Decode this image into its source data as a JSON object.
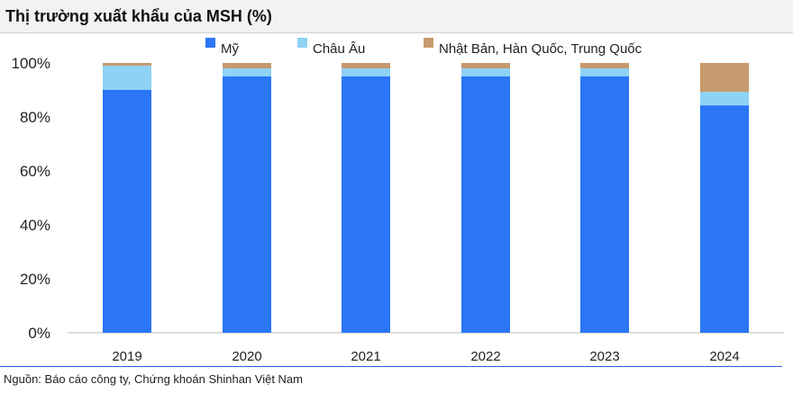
{
  "chart_data": {
    "type": "bar",
    "stacked": true,
    "title": "Thị trường xuất khẩu của MSH (%)",
    "categories": [
      "2019",
      "2020",
      "2021",
      "2022",
      "2023",
      "2024"
    ],
    "series": [
      {
        "name": "Mỹ",
        "color": "#2a76f4",
        "values": [
          90,
          95,
          95,
          95,
          95,
          84.3
        ]
      },
      {
        "name": "Châu Âu",
        "color": "#8ed2f5",
        "values": [
          9,
          3,
          3,
          3,
          3,
          5
        ]
      },
      {
        "name": "Nhật Bản, Hàn Quốc, Trung Quốc",
        "color": "#c69a6d",
        "values": [
          1,
          2,
          2,
          2,
          2,
          10.7
        ]
      }
    ],
    "ylim": [
      0,
      100
    ],
    "yticks": [
      "0%",
      "20%",
      "40%",
      "60%",
      "80%",
      "100%"
    ],
    "grid": false,
    "legend": "top"
  },
  "source": "Nguồn: Báo cáo công ty, Chứng khoán Shinhan Việt Nam"
}
